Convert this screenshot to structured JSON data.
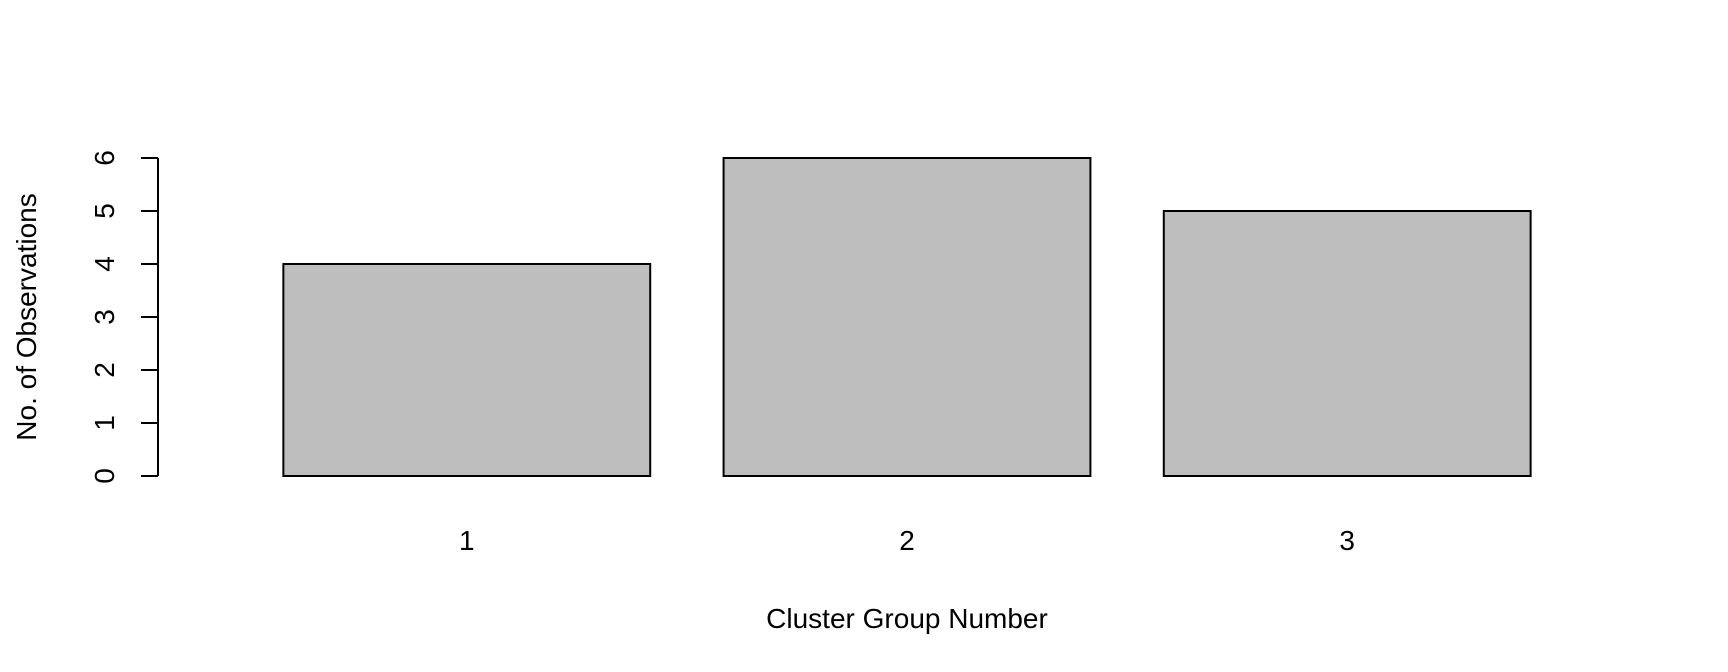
{
  "chart_data": {
    "type": "bar",
    "categories": [
      "1",
      "2",
      "3"
    ],
    "values": [
      4,
      6,
      5
    ],
    "title": "",
    "xlabel": "Cluster Group Number",
    "ylabel": "No. of Observations",
    "ylim": [
      0,
      6
    ],
    "yticks": [
      0,
      1,
      2,
      3,
      4,
      5,
      6
    ],
    "yticklabels": [
      "0",
      "1",
      "2",
      "3",
      "4",
      "5",
      "6"
    ],
    "grid": false,
    "legend": "none",
    "bar_fill": "#bebebe",
    "bar_stroke": "#000000"
  }
}
